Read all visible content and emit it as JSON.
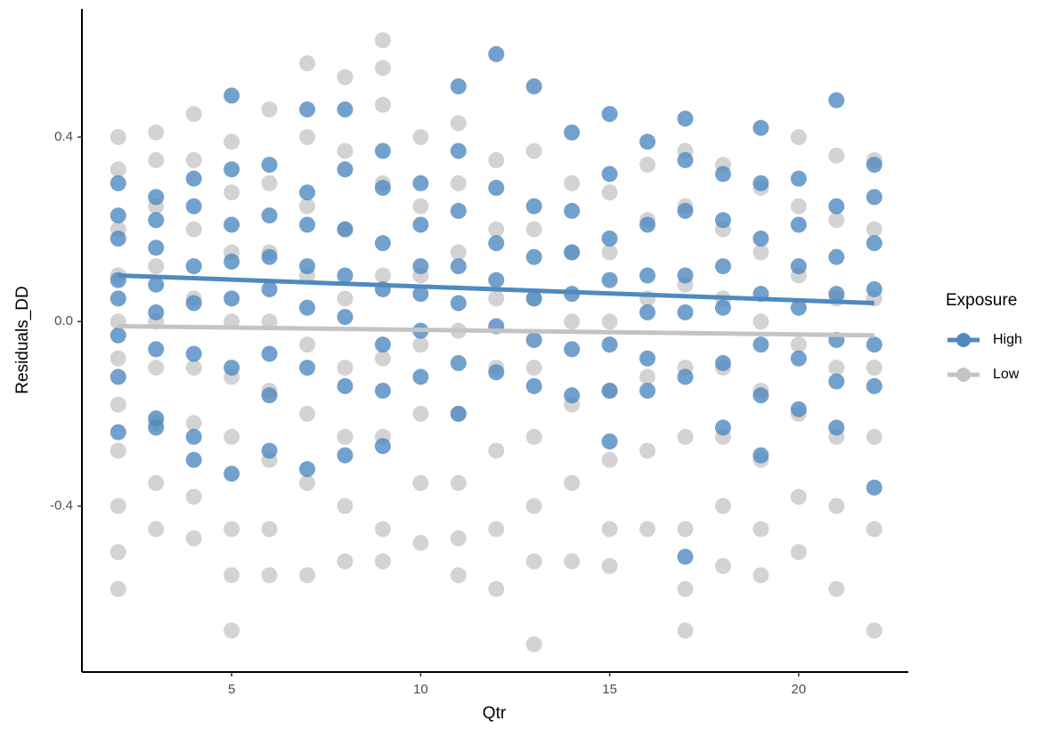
{
  "chart_data": {
    "type": "scatter",
    "x_label": "Qtr",
    "y_label": "Residuals_DD",
    "xlim": [
      1.04,
      22.9
    ],
    "ylim": [
      -0.76,
      0.678
    ],
    "xticks": [
      5,
      10,
      15,
      20
    ],
    "yticks": [
      -0.4,
      {
        "value": 0,
        "label": "0.0"
      },
      0.4
    ],
    "legend_title": "Exposure",
    "legend": "right",
    "series": [
      {
        "name": "High",
        "color": "#4f89c0",
        "x": [
          2,
          2,
          2,
          2,
          2,
          2,
          2,
          2,
          3,
          3,
          3,
          3,
          3,
          3,
          3,
          3,
          4,
          4,
          4,
          4,
          4,
          4,
          4,
          5,
          5,
          5,
          5,
          5,
          5,
          5,
          6,
          6,
          6,
          6,
          6,
          6,
          6,
          7,
          7,
          7,
          7,
          7,
          7,
          7,
          8,
          8,
          8,
          8,
          8,
          8,
          8,
          9,
          9,
          9,
          9,
          9,
          9,
          9,
          10,
          10,
          10,
          10,
          10,
          10,
          11,
          11,
          11,
          11,
          11,
          11,
          11,
          12,
          12,
          12,
          12,
          12,
          12,
          13,
          13,
          13,
          13,
          13,
          13,
          14,
          14,
          14,
          14,
          14,
          14,
          15,
          15,
          15,
          15,
          15,
          15,
          15,
          16,
          16,
          16,
          16,
          16,
          16,
          17,
          17,
          17,
          17,
          17,
          17,
          17,
          18,
          18,
          18,
          18,
          18,
          18,
          19,
          19,
          19,
          19,
          19,
          19,
          19,
          20,
          20,
          20,
          20,
          20,
          20,
          21,
          21,
          21,
          21,
          21,
          21,
          21,
          22,
          22,
          22,
          22,
          22,
          22,
          22
        ],
        "y": [
          0.3,
          0.23,
          0.18,
          0.09,
          0.05,
          -0.03,
          -0.12,
          -0.24,
          0.27,
          0.22,
          0.16,
          0.08,
          0.02,
          -0.06,
          -0.21,
          -0.23,
          0.31,
          0.25,
          0.12,
          0.04,
          -0.07,
          -0.25,
          -0.3,
          0.49,
          0.33,
          0.21,
          0.13,
          0.05,
          -0.1,
          -0.33,
          0.34,
          0.23,
          0.14,
          0.07,
          -0.07,
          -0.16,
          -0.28,
          0.46,
          0.28,
          0.21,
          0.12,
          0.03,
          -0.1,
          -0.32,
          0.46,
          0.33,
          0.2,
          0.1,
          0.01,
          -0.14,
          -0.29,
          0.37,
          0.29,
          0.17,
          0.07,
          -0.05,
          -0.15,
          -0.27,
          0.3,
          0.21,
          0.12,
          0.06,
          -0.02,
          -0.12,
          0.51,
          0.37,
          0.24,
          0.12,
          0.04,
          -0.09,
          -0.2,
          0.58,
          0.29,
          0.17,
          0.09,
          -0.01,
          -0.11,
          0.51,
          0.25,
          0.14,
          0.05,
          -0.04,
          -0.14,
          0.41,
          0.24,
          0.15,
          0.06,
          -0.06,
          -0.16,
          0.45,
          0.32,
          0.18,
          0.09,
          -0.05,
          -0.15,
          -0.26,
          0.39,
          0.21,
          0.1,
          0.02,
          -0.08,
          -0.15,
          0.44,
          0.35,
          0.24,
          0.1,
          0.02,
          -0.12,
          -0.51,
          0.32,
          0.22,
          0.12,
          0.03,
          -0.09,
          -0.23,
          0.42,
          0.3,
          0.18,
          0.06,
          -0.05,
          -0.16,
          -0.29,
          0.31,
          0.21,
          0.12,
          0.03,
          -0.08,
          -0.19,
          0.48,
          0.25,
          0.14,
          0.06,
          -0.04,
          -0.13,
          -0.23,
          0.34,
          0.27,
          0.17,
          0.07,
          -0.05,
          -0.14,
          -0.36
        ],
        "fit": {
          "x": [
            2,
            22
          ],
          "y": [
            0.1,
            0.04
          ]
        }
      },
      {
        "name": "Low",
        "color": "#c4c4c4",
        "x": [
          2,
          2,
          2,
          2,
          2,
          2,
          2,
          2,
          2,
          2,
          2,
          3,
          3,
          3,
          3,
          3,
          3,
          3,
          3,
          3,
          4,
          4,
          4,
          4,
          4,
          4,
          4,
          4,
          5,
          5,
          5,
          5,
          5,
          5,
          5,
          5,
          5,
          6,
          6,
          6,
          6,
          6,
          6,
          6,
          6,
          7,
          7,
          7,
          7,
          7,
          7,
          7,
          7,
          8,
          8,
          8,
          8,
          8,
          8,
          8,
          8,
          9,
          9,
          9,
          9,
          9,
          9,
          9,
          9,
          9,
          10,
          10,
          10,
          10,
          10,
          10,
          10,
          11,
          11,
          11,
          11,
          11,
          11,
          11,
          11,
          12,
          12,
          12,
          12,
          12,
          12,
          12,
          13,
          13,
          13,
          13,
          13,
          13,
          13,
          13,
          14,
          14,
          14,
          14,
          14,
          14,
          15,
          15,
          15,
          15,
          15,
          15,
          15,
          16,
          16,
          16,
          16,
          16,
          16,
          17,
          17,
          17,
          17,
          17,
          17,
          17,
          17,
          18,
          18,
          18,
          18,
          18,
          18,
          18,
          19,
          19,
          19,
          19,
          19,
          19,
          19,
          20,
          20,
          20,
          20,
          20,
          20,
          20,
          21,
          21,
          21,
          21,
          21,
          21,
          21,
          22,
          22,
          22,
          22,
          22,
          22,
          22
        ],
        "y": [
          0.4,
          0.33,
          0.2,
          0.1,
          0.0,
          -0.08,
          -0.18,
          -0.28,
          -0.4,
          -0.5,
          -0.58,
          0.41,
          0.35,
          0.25,
          0.12,
          0.0,
          -0.1,
          -0.22,
          -0.35,
          -0.45,
          0.45,
          0.35,
          0.2,
          0.05,
          -0.1,
          -0.22,
          -0.38,
          -0.47,
          0.39,
          0.28,
          0.15,
          0.0,
          -0.12,
          -0.25,
          -0.45,
          -0.55,
          -0.67,
          0.46,
          0.3,
          0.15,
          0.0,
          -0.15,
          -0.3,
          -0.45,
          -0.55,
          0.56,
          0.4,
          0.25,
          0.1,
          -0.05,
          -0.2,
          -0.35,
          -0.55,
          0.53,
          0.37,
          0.2,
          0.05,
          -0.1,
          -0.25,
          -0.4,
          -0.52,
          0.61,
          0.55,
          0.47,
          0.3,
          0.1,
          -0.08,
          -0.25,
          -0.45,
          -0.52,
          0.4,
          0.25,
          0.1,
          -0.05,
          -0.2,
          -0.35,
          -0.48,
          0.43,
          0.3,
          0.15,
          -0.02,
          -0.2,
          -0.35,
          -0.47,
          -0.55,
          0.35,
          0.2,
          0.05,
          -0.1,
          -0.28,
          -0.45,
          -0.58,
          0.37,
          0.2,
          0.05,
          -0.1,
          -0.25,
          -0.4,
          -0.52,
          -0.7,
          0.3,
          0.15,
          0.0,
          -0.18,
          -0.35,
          -0.52,
          0.28,
          0.15,
          0.0,
          -0.15,
          -0.3,
          -0.45,
          -0.53,
          0.34,
          0.22,
          0.05,
          -0.12,
          -0.28,
          -0.45,
          0.37,
          0.25,
          0.08,
          -0.1,
          -0.25,
          -0.45,
          -0.58,
          -0.67,
          0.34,
          0.2,
          0.05,
          -0.1,
          -0.25,
          -0.4,
          -0.53,
          0.29,
          0.15,
          0.0,
          -0.15,
          -0.3,
          -0.45,
          -0.55,
          0.4,
          0.25,
          0.1,
          -0.05,
          -0.2,
          -0.38,
          -0.5,
          0.36,
          0.22,
          0.05,
          -0.1,
          -0.25,
          -0.4,
          -0.58,
          0.35,
          0.2,
          0.05,
          -0.1,
          -0.25,
          -0.45,
          -0.67
        ],
        "fit": {
          "x": [
            2,
            22
          ],
          "y": [
            -0.01,
            -0.03
          ]
        }
      }
    ]
  }
}
